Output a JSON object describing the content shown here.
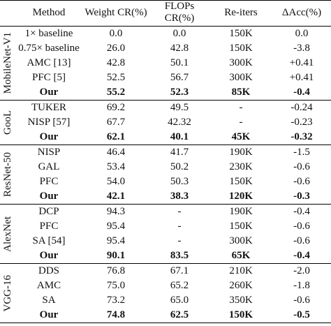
{
  "table": {
    "header": [
      "Method",
      "Weight CR(%)",
      "FLOPs CR(%)",
      "Re-iters",
      "ΔAcc(%)"
    ],
    "groups": [
      {
        "name": "MobileNet-V1",
        "rows": [
          [
            "1× baseline",
            "0.0",
            "0.0",
            "150K",
            "0.0"
          ],
          [
            "0.75× baseline",
            "26.0",
            "42.8",
            "150K",
            "-3.8"
          ],
          [
            "AMC [13]",
            "42.8",
            "50.1",
            "300K",
            "+0.41"
          ],
          [
            "PFC [5]",
            "52.5",
            "56.7",
            "300K",
            "+0.41"
          ],
          [
            "Our",
            "55.2",
            "52.3",
            "85K",
            "-0.4"
          ]
        ]
      },
      {
        "name": "GooL",
        "rows": [
          [
            "TUKER",
            "69.2",
            "49.5",
            "-",
            "-0.24"
          ],
          [
            "NISP [57]",
            "67.7",
            "42.32",
            "-",
            "-0.23"
          ],
          [
            "Our",
            "62.1",
            "40.1",
            "45K",
            "-0.32"
          ]
        ]
      },
      {
        "name": "ResNet-50",
        "rows": [
          [
            "NISP",
            "46.4",
            "41.7",
            "190K",
            "-1.5"
          ],
          [
            "GAL",
            "53.4",
            "50.2",
            "230K",
            "-0.6"
          ],
          [
            "PFC",
            "54.0",
            "50.3",
            "150K",
            "-0.6"
          ],
          [
            "Our",
            "42.1",
            "38.3",
            "120K",
            "-0.3"
          ]
        ]
      },
      {
        "name": "AlexNet",
        "rows": [
          [
            "DCP",
            "94.3",
            "-",
            "190K",
            "-0.4"
          ],
          [
            "PFC",
            "95.4",
            "-",
            "150K",
            "-0.6"
          ],
          [
            "SA [54]",
            "95.4",
            "-",
            "300K",
            "-0.6"
          ],
          [
            "Our",
            "90.1",
            "83.5",
            "65K",
            "-0.4"
          ]
        ]
      },
      {
        "name": "VGG-16",
        "rows": [
          [
            "DDS",
            "76.8",
            "67.1",
            "210K",
            "-2.0"
          ],
          [
            "AMC",
            "75.0",
            "65.2",
            "260K",
            "-1.8"
          ],
          [
            "SA",
            "73.2",
            "65.0",
            "350K",
            "-0.6"
          ],
          [
            "Our",
            "74.8",
            "62.5",
            "150K",
            "-0.5"
          ]
        ]
      }
    ]
  }
}
